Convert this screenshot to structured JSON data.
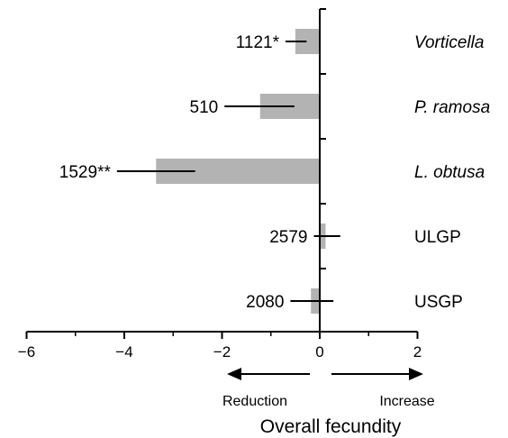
{
  "chart_data": {
    "type": "bar",
    "orientation": "horizontal",
    "title": "",
    "xlabel": "Overall fecundity",
    "ylabel": "",
    "xlim": [
      -6,
      2
    ],
    "x_ticks": [
      -6,
      -4,
      -2,
      0,
      2
    ],
    "x_tick_labels": [
      "−6",
      "−4",
      "−2",
      "0",
      "2"
    ],
    "grid": false,
    "legend": "none",
    "bar_color": "#b3b3b3",
    "direction_labels": {
      "left": "Reduction",
      "right": "Increase"
    },
    "categories": [
      {
        "name": "Vorticella",
        "italic": true
      },
      {
        "name": "P. ramosa",
        "italic": true
      },
      {
        "name": "L. obtusa",
        "italic": true
      },
      {
        "name": "ULGP",
        "italic": false
      },
      {
        "name": "USGP",
        "italic": false
      }
    ],
    "values": [
      -0.5,
      -1.22,
      -3.35,
      0.12,
      -0.18
    ],
    "error_low": [
      -0.7,
      -1.95,
      -4.15,
      -0.12,
      -0.6
    ],
    "error_high": [
      -0.27,
      -0.52,
      -2.55,
      0.42,
      0.28
    ],
    "data_labels": [
      "1121*",
      "510",
      "1529**",
      "2579",
      "2080"
    ]
  }
}
